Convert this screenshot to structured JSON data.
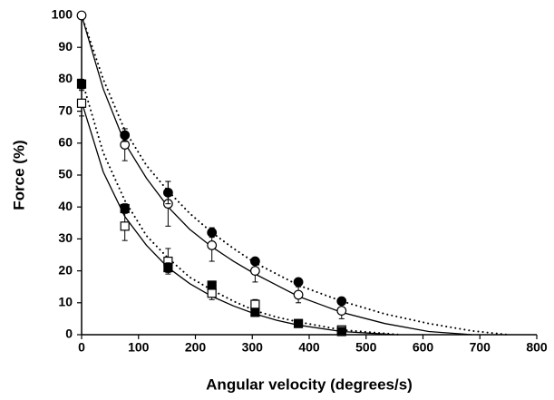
{
  "chart_data": {
    "type": "scatter",
    "xlabel": "Angular velocity (degrees/s)",
    "ylabel": "Force (%)",
    "xlim": [
      0,
      800
    ],
    "ylim": [
      0,
      100
    ],
    "xticks": [
      0,
      100,
      200,
      300,
      400,
      500,
      600,
      700,
      800
    ],
    "yticks": [
      0,
      10,
      20,
      30,
      40,
      50,
      60,
      70,
      80,
      90,
      100
    ],
    "series": [
      {
        "color": "#000000",
        "marker": "circle",
        "filled": false,
        "x": [
          0,
          76,
          152,
          229,
          305,
          381,
          457
        ],
        "values": [
          100,
          59.5,
          41,
          28,
          20,
          12.5,
          7.5
        ],
        "errors": [
          0,
          5,
          7,
          5,
          3.5,
          2.5,
          2.5
        ]
      },
      {
        "color": "#000000",
        "marker": "circle",
        "filled": true,
        "x": [
          76,
          152,
          229,
          305,
          381,
          457
        ],
        "values": [
          62.5,
          44.5,
          32,
          23,
          16.5,
          10.5
        ],
        "errors": [
          2,
          3.5,
          1.5,
          1,
          1,
          1
        ]
      },
      {
        "color": "#000000",
        "marker": "square",
        "filled": false,
        "x": [
          0,
          76,
          152,
          229,
          305,
          457
        ],
        "values": [
          72.5,
          34,
          23,
          13,
          9.5,
          1.5
        ],
        "errors": [
          4,
          4.5,
          4,
          2,
          1.5,
          0.5
        ]
      },
      {
        "color": "#000000",
        "marker": "square",
        "filled": true,
        "x": [
          0,
          76,
          152,
          229,
          305,
          381,
          457
        ],
        "values": [
          78.5,
          39.5,
          21,
          15.5,
          7,
          3.5,
          1
        ],
        "errors": [
          1.5,
          1.5,
          1.5,
          1,
          0.5,
          0.5,
          0.5
        ]
      }
    ],
    "fits": [
      {
        "color": "#000000",
        "dash": "solid",
        "x": [
          0,
          38,
          76,
          114,
          152,
          190,
          229,
          267,
          305,
          343,
          381,
          419,
          457,
          533,
          610,
          686
        ],
        "values": [
          100,
          77,
          60,
          49,
          40,
          33,
          27.5,
          23,
          19,
          15.5,
          12,
          9.5,
          7,
          3.5,
          1,
          0
        ]
      },
      {
        "color": "#000000",
        "dash": "dotted",
        "x": [
          0,
          38,
          76,
          114,
          152,
          190,
          229,
          267,
          305,
          343,
          381,
          419,
          457,
          533,
          610,
          686,
          750
        ],
        "values": [
          100,
          80,
          64,
          53,
          45,
          38,
          32,
          27,
          22.5,
          19,
          15.5,
          13,
          10.5,
          6.5,
          3.5,
          1.2,
          0
        ]
      },
      {
        "color": "#000000",
        "dash": "solid",
        "x": [
          0,
          38,
          76,
          114,
          152,
          190,
          229,
          267,
          305,
          343,
          381,
          457,
          533,
          550
        ],
        "values": [
          73,
          51,
          37,
          28,
          21,
          16,
          12,
          9,
          6.5,
          4.5,
          3,
          1,
          0.2,
          0
        ]
      },
      {
        "color": "#000000",
        "dash": "dotted",
        "x": [
          0,
          38,
          76,
          114,
          152,
          190,
          229,
          267,
          305,
          343,
          381,
          457,
          533,
          560
        ],
        "values": [
          80,
          57,
          42,
          31,
          24,
          18,
          14,
          10.5,
          7.5,
          5.5,
          4,
          1.5,
          0.4,
          0
        ]
      }
    ]
  }
}
